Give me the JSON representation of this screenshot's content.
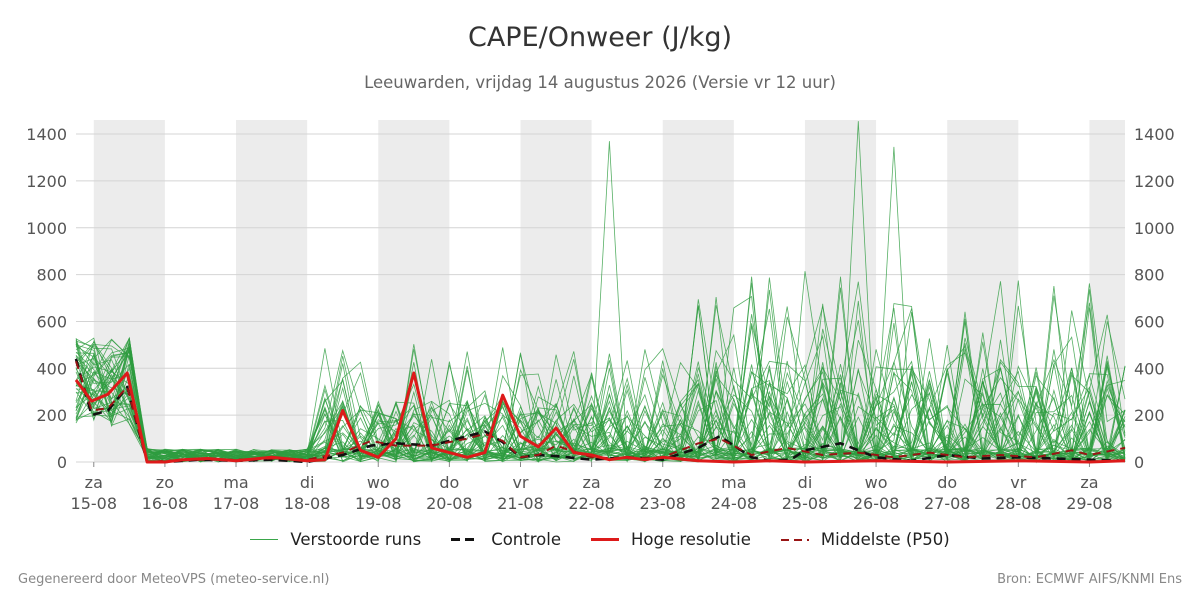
{
  "title": "CAPE/Onweer (J/kg)",
  "subtitle": "Leeuwarden, vrijdag 14 augustus 2026 (Versie vr 12 uur)",
  "footer": {
    "left": "Gegenereerd door MeteoVPS (meteo-service.nl)",
    "right": "Bron: ECMWF AIFS/KNMI Ens"
  },
  "legend": [
    {
      "label": "Verstoorde runs",
      "color": "#3aa64a",
      "style": "thin"
    },
    {
      "label": "Controle",
      "color": "#111111",
      "style": "dashed"
    },
    {
      "label": "Hoge resolutie",
      "color": "#dd1a1a",
      "style": "solid"
    },
    {
      "label": "Middelste (P50)",
      "color": "#991515",
      "style": "dashed"
    }
  ],
  "chart_data": {
    "type": "line",
    "ylim": [
      0,
      1460
    ],
    "yticks": [
      0,
      200,
      400,
      600,
      800,
      1000,
      1200,
      1400
    ],
    "grid": true,
    "legend_position": "bottom",
    "x_unit": "days since 14-08 00:00",
    "xlim": [
      0.75,
      15.5
    ],
    "x_days": [
      {
        "day": "za",
        "date": "15-08"
      },
      {
        "day": "zo",
        "date": "16-08"
      },
      {
        "day": "ma",
        "date": "17-08"
      },
      {
        "day": "di",
        "date": "18-08"
      },
      {
        "day": "wo",
        "date": "19-08"
      },
      {
        "day": "do",
        "date": "20-08"
      },
      {
        "day": "vr",
        "date": "21-08"
      },
      {
        "day": "za",
        "date": "22-08"
      },
      {
        "day": "zo",
        "date": "23-08"
      },
      {
        "day": "ma",
        "date": "24-08"
      },
      {
        "day": "di",
        "date": "25-08"
      },
      {
        "day": "wo",
        "date": "26-08"
      },
      {
        "day": "do",
        "date": "27-08"
      },
      {
        "day": "vr",
        "date": "28-08"
      },
      {
        "day": "za",
        "date": "29-08"
      }
    ],
    "shaded_days": [
      1,
      3,
      5,
      7,
      9,
      11,
      13,
      15
    ],
    "series": [
      {
        "name": "Hoge resolutie",
        "color": "#dd1a1a",
        "x": [
          0.75,
          0.97,
          1.2,
          1.47,
          1.75,
          2.0,
          2.25,
          2.6,
          3.0,
          3.5,
          4.0,
          4.25,
          4.5,
          4.75,
          5.0,
          5.25,
          5.5,
          5.75,
          6.0,
          6.25,
          6.5,
          6.75,
          7.0,
          7.25,
          7.5,
          7.75,
          8.0,
          8.25,
          8.5,
          8.75,
          9.0,
          9.5,
          10.0,
          10.5,
          11.0,
          12.0,
          13.0,
          14.0,
          15.0,
          15.5
        ],
        "values": [
          350,
          260,
          290,
          380,
          0,
          0,
          10,
          15,
          5,
          20,
          5,
          10,
          220,
          50,
          20,
          100,
          380,
          60,
          40,
          20,
          40,
          285,
          110,
          65,
          145,
          40,
          30,
          10,
          20,
          10,
          20,
          5,
          0,
          5,
          0,
          5,
          0,
          5,
          0,
          5
        ]
      },
      {
        "name": "Controle",
        "color": "#111111",
        "x": [
          0.75,
          0.97,
          1.2,
          1.47,
          1.75,
          2.0,
          2.5,
          3.0,
          3.5,
          4.0,
          4.5,
          4.9,
          5.25,
          5.75,
          6.25,
          6.5,
          6.75,
          7.0,
          7.25,
          7.5,
          8.0,
          8.5,
          9.0,
          9.5,
          9.8,
          10.25,
          10.5,
          10.8,
          11.0,
          11.5,
          12.0,
          12.5,
          13.0,
          13.5,
          14.0,
          14.5,
          15.0,
          15.5
        ],
        "values": [
          440,
          200,
          220,
          320,
          0,
          0,
          10,
          5,
          10,
          0,
          30,
          70,
          80,
          70,
          110,
          130,
          85,
          20,
          30,
          25,
          10,
          20,
          10,
          60,
          110,
          20,
          5,
          10,
          50,
          80,
          20,
          5,
          30,
          15,
          20,
          15,
          10,
          5
        ]
      },
      {
        "name": "Middelste (P50)",
        "color": "#991515",
        "x": [
          0.75,
          0.97,
          1.2,
          1.47,
          1.75,
          2.0,
          2.5,
          3.0,
          3.5,
          4.0,
          4.5,
          4.9,
          5.25,
          5.75,
          6.25,
          6.5,
          6.75,
          7.0,
          7.25,
          7.5,
          8.0,
          8.5,
          9.0,
          9.5,
          9.8,
          10.25,
          10.75,
          11.25,
          11.75,
          12.25,
          12.75,
          13.25,
          13.75,
          14.25,
          14.75,
          15.0,
          15.5
        ],
        "values": [
          430,
          220,
          230,
          320,
          0,
          5,
          10,
          10,
          15,
          10,
          40,
          90,
          70,
          70,
          100,
          120,
          90,
          20,
          30,
          70,
          20,
          15,
          20,
          80,
          100,
          30,
          60,
          30,
          40,
          20,
          40,
          20,
          30,
          20,
          50,
          30,
          60
        ]
      }
    ]
  }
}
